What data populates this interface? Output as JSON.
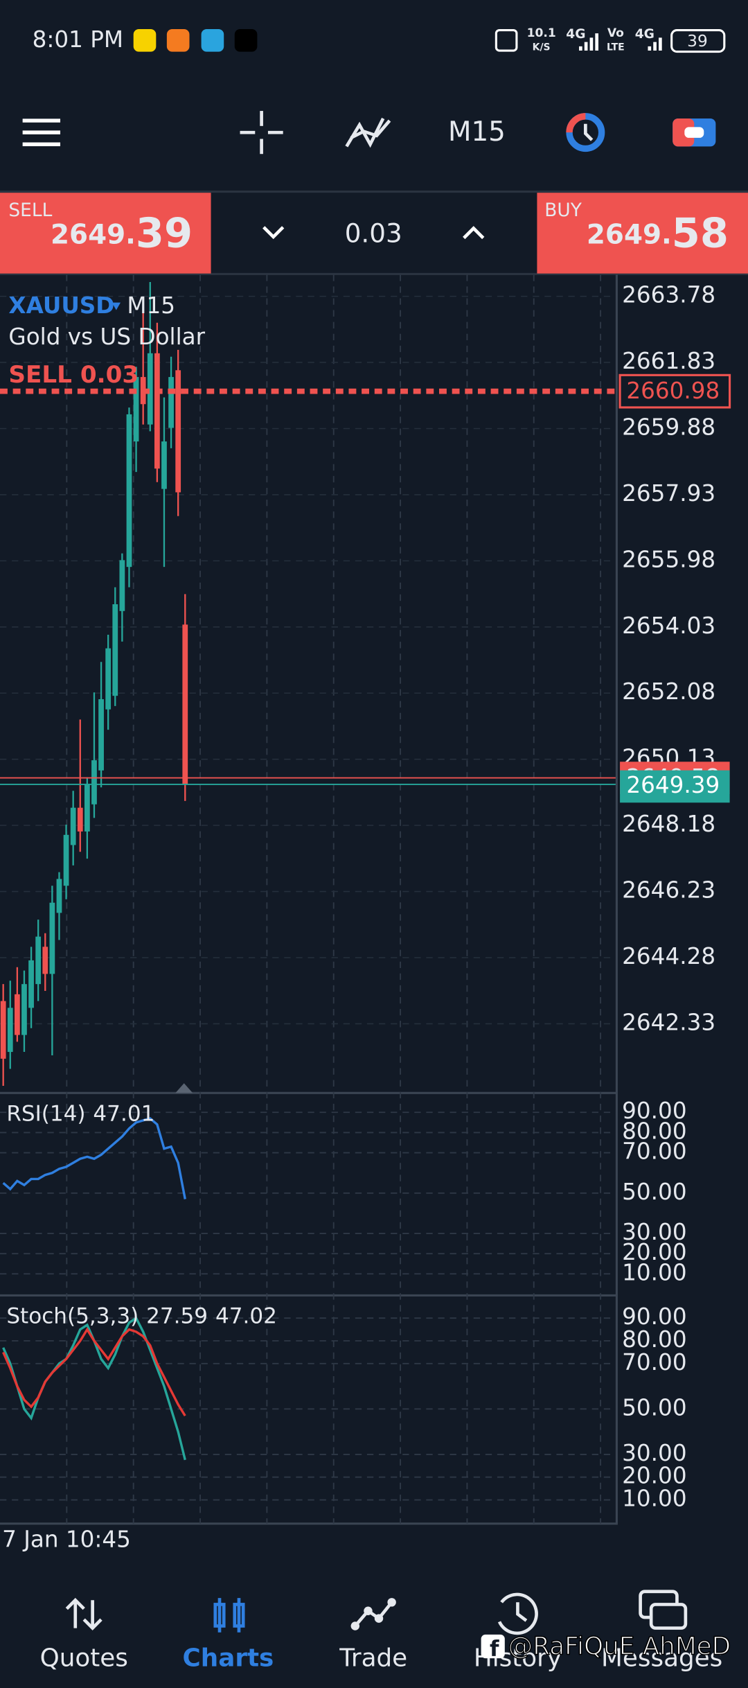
{
  "status_bar": {
    "time": "8:01 PM",
    "net_speed": "10.1",
    "net_unit": "K/S",
    "signal_1": "4G",
    "volte_top": "Vo",
    "volte_bottom": "LTE",
    "signal_2": "4G",
    "battery": "39"
  },
  "toolbar": {
    "timeframe": "M15"
  },
  "trade_panel": {
    "sell_label": "SELL",
    "sell_price_main": "2649.",
    "sell_price_fraction": "39",
    "volume": "0.03",
    "buy_label": "BUY",
    "buy_price_main": "2649.",
    "buy_price_fraction": "58"
  },
  "chart_data": [
    {
      "type": "candlestick",
      "symbol": "XAUUSD",
      "timeframe": "M15",
      "description": "Gold vs US Dollar",
      "position_label": "SELL 0.03",
      "position_price": 2660.98,
      "position_color": "#ef5350",
      "bid": 2649.39,
      "bid_color": "#26a69a",
      "ask": 2649.58,
      "ask_color": "#ef5350",
      "up_color": "#26a69a",
      "down_color": "#ef5350",
      "ylim": [
        2640.29,
        2664.42
      ],
      "yticks": [
        2663.78,
        2661.83,
        2659.88,
        2657.93,
        2655.98,
        2654.03,
        2652.08,
        2650.13,
        2648.18,
        2646.23,
        2644.28,
        2642.33
      ],
      "open": [
        2643.0,
        2641.5,
        2643.2,
        2642.0,
        2642.8,
        2643.5,
        2644.6,
        2643.8,
        2645.6,
        2646.4,
        2647.6,
        2648.7,
        2648.0,
        2648.8,
        2649.8,
        2651.6,
        2652.0,
        2654.5,
        2655.8,
        2659.5,
        2661.4,
        2660.0,
        2662.1,
        2658.1,
        2659.9,
        2661.6,
        2654.1
      ],
      "high": [
        2643.5,
        2643.6,
        2644.0,
        2643.9,
        2644.6,
        2645.4,
        2645.0,
        2646.4,
        2646.8,
        2648.2,
        2649.2,
        2651.3,
        2649.6,
        2652.1,
        2653.0,
        2653.8,
        2655.2,
        2656.2,
        2660.5,
        2661.7,
        2663.3,
        2664.2,
        2663.0,
        2660.8,
        2662.0,
        2662.2,
        2655.0
      ],
      "low": [
        2640.5,
        2641.0,
        2641.8,
        2641.5,
        2642.2,
        2643.0,
        2643.3,
        2641.4,
        2644.8,
        2646.0,
        2647.0,
        2647.4,
        2647.2,
        2648.4,
        2649.3,
        2651.0,
        2651.7,
        2653.6,
        2655.2,
        2658.6,
        2660.0,
        2659.8,
        2658.3,
        2655.8,
        2659.3,
        2657.3,
        2648.9
      ],
      "close": [
        2641.3,
        2642.8,
        2642.0,
        2643.5,
        2644.2,
        2644.9,
        2643.8,
        2645.9,
        2646.6,
        2647.9,
        2648.7,
        2648.0,
        2649.4,
        2650.1,
        2651.9,
        2653.4,
        2654.7,
        2656.0,
        2660.3,
        2661.4,
        2660.6,
        2662.1,
        2658.7,
        2659.5,
        2661.4,
        2658.0,
        2649.4
      ],
      "x_label": "7 Jan 10:45"
    },
    {
      "type": "line",
      "title": "RSI(14)",
      "ylim": [
        0,
        100
      ],
      "yticks": [
        {
          "value": 90,
          "label": "90.00"
        },
        {
          "value": 80,
          "label": "80.00"
        },
        {
          "value": 70,
          "label": "70.00"
        },
        {
          "value": 50,
          "label": "50.00"
        },
        {
          "value": 30,
          "label": "30.00"
        },
        {
          "value": 20,
          "label": "20.00"
        },
        {
          "value": 10,
          "label": "10.00"
        }
      ],
      "series": [
        {
          "color": "#2f7fe0",
          "values": [
            55,
            52,
            56,
            54,
            57,
            57,
            59,
            60,
            62,
            63,
            65,
            67,
            68,
            67,
            69,
            72,
            75,
            78,
            82,
            85,
            86,
            87,
            84,
            72,
            73,
            65,
            47.01
          ]
        }
      ]
    },
    {
      "type": "line",
      "title": "Stoch(5,3,3)",
      "ylim": [
        0,
        100
      ],
      "yticks": [
        {
          "value": 90,
          "label": "90.00"
        },
        {
          "value": 80,
          "label": "80.00"
        },
        {
          "value": 70,
          "label": "70.00"
        },
        {
          "value": 50,
          "label": "50.00"
        },
        {
          "value": 30,
          "label": "30.00"
        },
        {
          "value": 20,
          "label": "20.00"
        },
        {
          "value": 10,
          "label": "10.00"
        }
      ],
      "series": [
        {
          "color": "#26a69a",
          "values": [
            77,
            70,
            60,
            50,
            46,
            55,
            62,
            66,
            70,
            72,
            78,
            85,
            87,
            80,
            72,
            68,
            74,
            82,
            88,
            90,
            84,
            76,
            68,
            60,
            50,
            40,
            27.59
          ]
        },
        {
          "color": "#e53935",
          "values": [
            75,
            68,
            60,
            54,
            51,
            55,
            62,
            66,
            69,
            72,
            76,
            80,
            85,
            80,
            76,
            72,
            77,
            82,
            85,
            84,
            82,
            78,
            70,
            64,
            58,
            52,
            47.02
          ]
        }
      ]
    }
  ],
  "bottom_nav": {
    "items": [
      "Quotes",
      "Charts",
      "Trade",
      "History",
      "Messages"
    ],
    "active": 1,
    "active_color": "#2f7fe0"
  },
  "watermark": "@RaFiQuE AhMeD"
}
